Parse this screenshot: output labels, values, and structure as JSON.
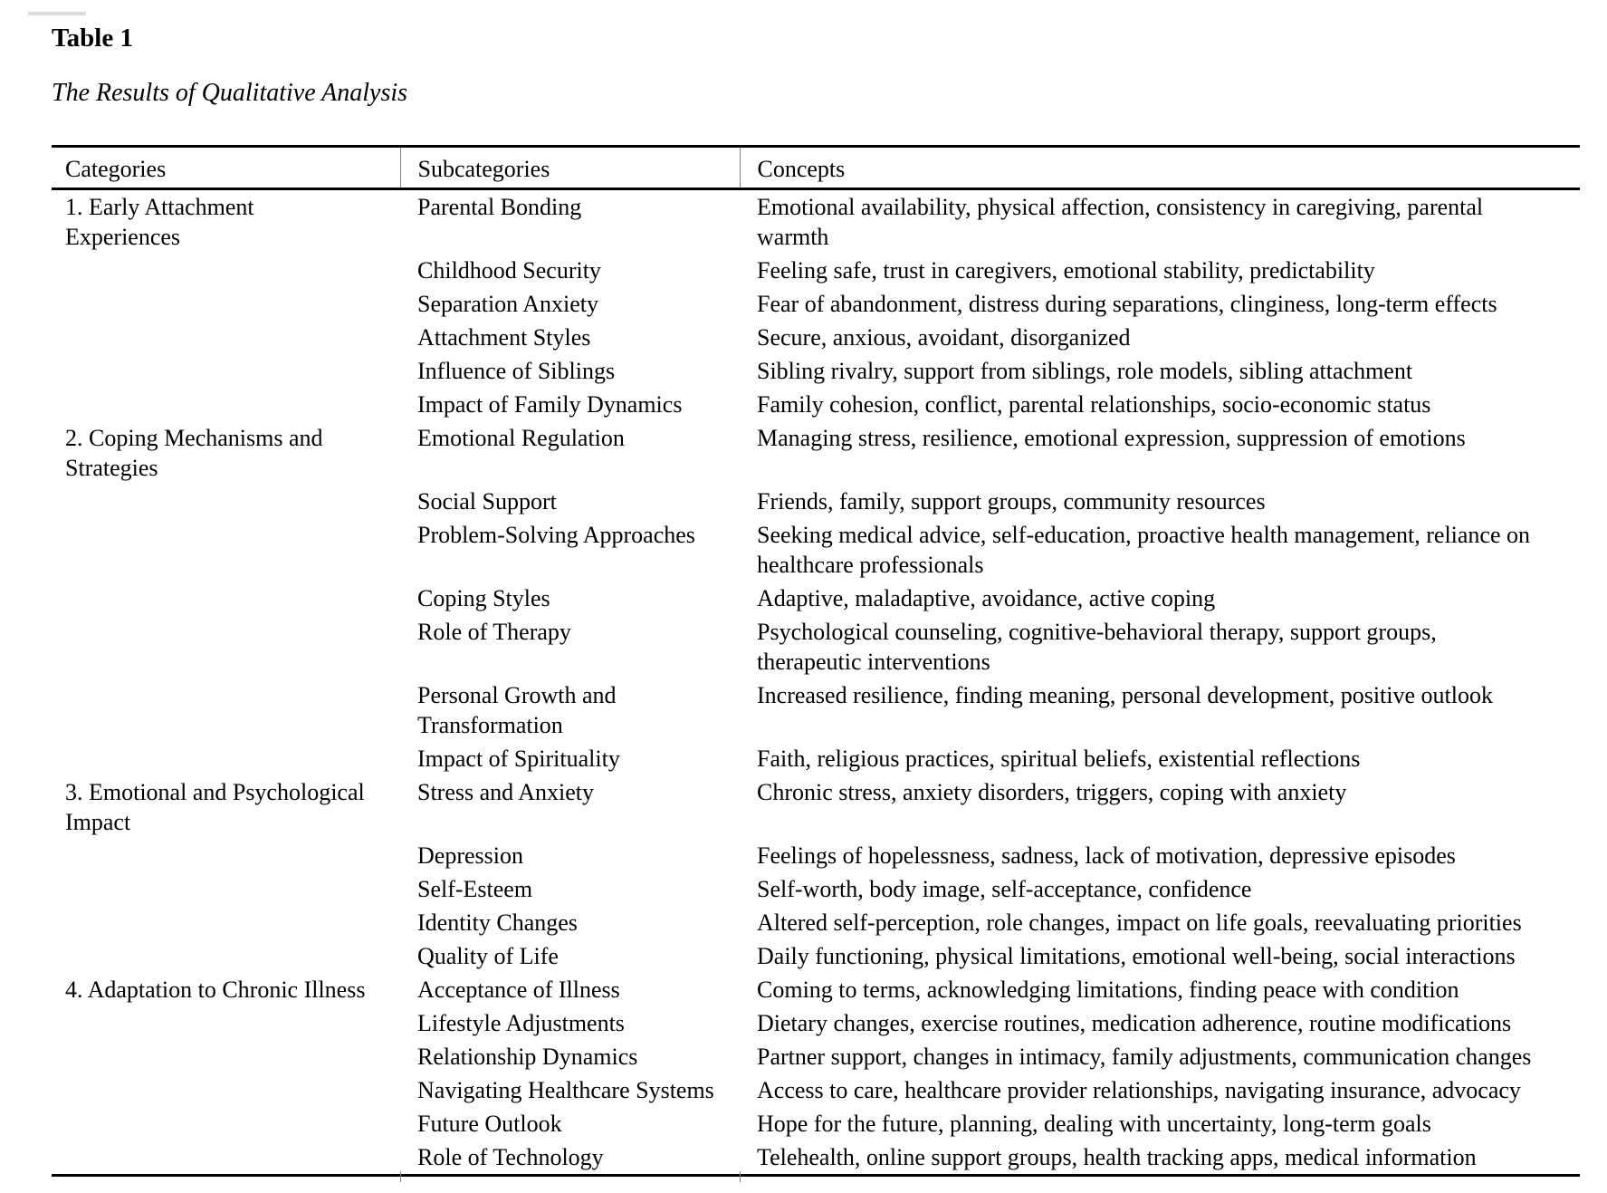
{
  "doc": {
    "label": "Table 1",
    "title": "The Results of Qualitative Analysis"
  },
  "colors": {
    "text": "#000000",
    "rules": "#000000",
    "background": "#ffffff"
  },
  "table": {
    "headers": [
      "Categories",
      "Subcategories",
      "Concepts"
    ],
    "sections": [
      {
        "category": "1. Early Attachment\nExperiences",
        "rows": [
          {
            "subcategory": "Parental Bonding",
            "concepts": "Emotional availability, physical affection, consistency in caregiving, parental\nwarmth"
          },
          {
            "subcategory": "Childhood Security",
            "concepts": "Feeling safe, trust in caregivers, emotional stability, predictability"
          },
          {
            "subcategory": "Separation Anxiety",
            "concepts": "Fear of abandonment, distress during separations, clinginess, long-term effects"
          },
          {
            "subcategory": "Attachment Styles",
            "concepts": "Secure, anxious, avoidant, disorganized"
          },
          {
            "subcategory": "Influence of Siblings",
            "concepts": "Sibling rivalry, support from siblings, role models, sibling attachment"
          },
          {
            "subcategory": "Impact of Family Dynamics",
            "concepts": "Family cohesion, conflict, parental relationships, socio-economic status"
          }
        ]
      },
      {
        "category": "2. Coping Mechanisms and\nStrategies",
        "rows": [
          {
            "subcategory": "Emotional Regulation",
            "concepts": "Managing stress, resilience, emotional expression, suppression of emotions"
          },
          {
            "subcategory": "Social Support",
            "concepts": "Friends, family, support groups, community resources"
          },
          {
            "subcategory": "Problem-Solving Approaches",
            "concepts": "Seeking medical advice, self-education, proactive health management, reliance on\nhealthcare professionals"
          },
          {
            "subcategory": "Coping Styles",
            "concepts": "Adaptive, maladaptive, avoidance, active coping"
          },
          {
            "subcategory": "Role of Therapy",
            "concepts": "Psychological counseling, cognitive-behavioral therapy, support groups,\ntherapeutic interventions"
          },
          {
            "subcategory": "Personal Growth and\nTransformation",
            "concepts": "Increased resilience, finding meaning, personal development, positive outlook"
          },
          {
            "subcategory": "Impact of Spirituality",
            "concepts": "Faith, religious practices, spiritual beliefs, existential reflections"
          }
        ]
      },
      {
        "category": "3. Emotional and Psychological\nImpact",
        "rows": [
          {
            "subcategory": "Stress and Anxiety",
            "concepts": "Chronic stress, anxiety disorders, triggers, coping with anxiety"
          },
          {
            "subcategory": "Depression",
            "concepts": "Feelings of hopelessness, sadness, lack of motivation, depressive episodes"
          },
          {
            "subcategory": "Self-Esteem",
            "concepts": "Self-worth, body image, self-acceptance, confidence"
          },
          {
            "subcategory": "Identity Changes",
            "concepts": "Altered self-perception, role changes, impact on life goals, reevaluating priorities"
          },
          {
            "subcategory": "Quality of Life",
            "concepts": "Daily functioning, physical limitations, emotional well-being, social interactions"
          }
        ]
      },
      {
        "category": "4. Adaptation to Chronic Illness",
        "rows": [
          {
            "subcategory": "Acceptance of Illness",
            "concepts": "Coming to terms, acknowledging limitations, finding peace with condition"
          },
          {
            "subcategory": "Lifestyle Adjustments",
            "concepts": "Dietary changes, exercise routines, medication adherence, routine modifications"
          },
          {
            "subcategory": "Relationship Dynamics",
            "concepts": "Partner support, changes in intimacy, family adjustments, communication changes"
          },
          {
            "subcategory": "Navigating Healthcare Systems",
            "concepts": "Access to care, healthcare provider relationships, navigating insurance, advocacy"
          },
          {
            "subcategory": "Future Outlook",
            "concepts": "Hope for the future, planning, dealing with uncertainty, long-term goals"
          },
          {
            "subcategory": "Role of Technology",
            "concepts": "Telehealth, online support groups, health tracking apps, medical information"
          }
        ]
      }
    ]
  }
}
